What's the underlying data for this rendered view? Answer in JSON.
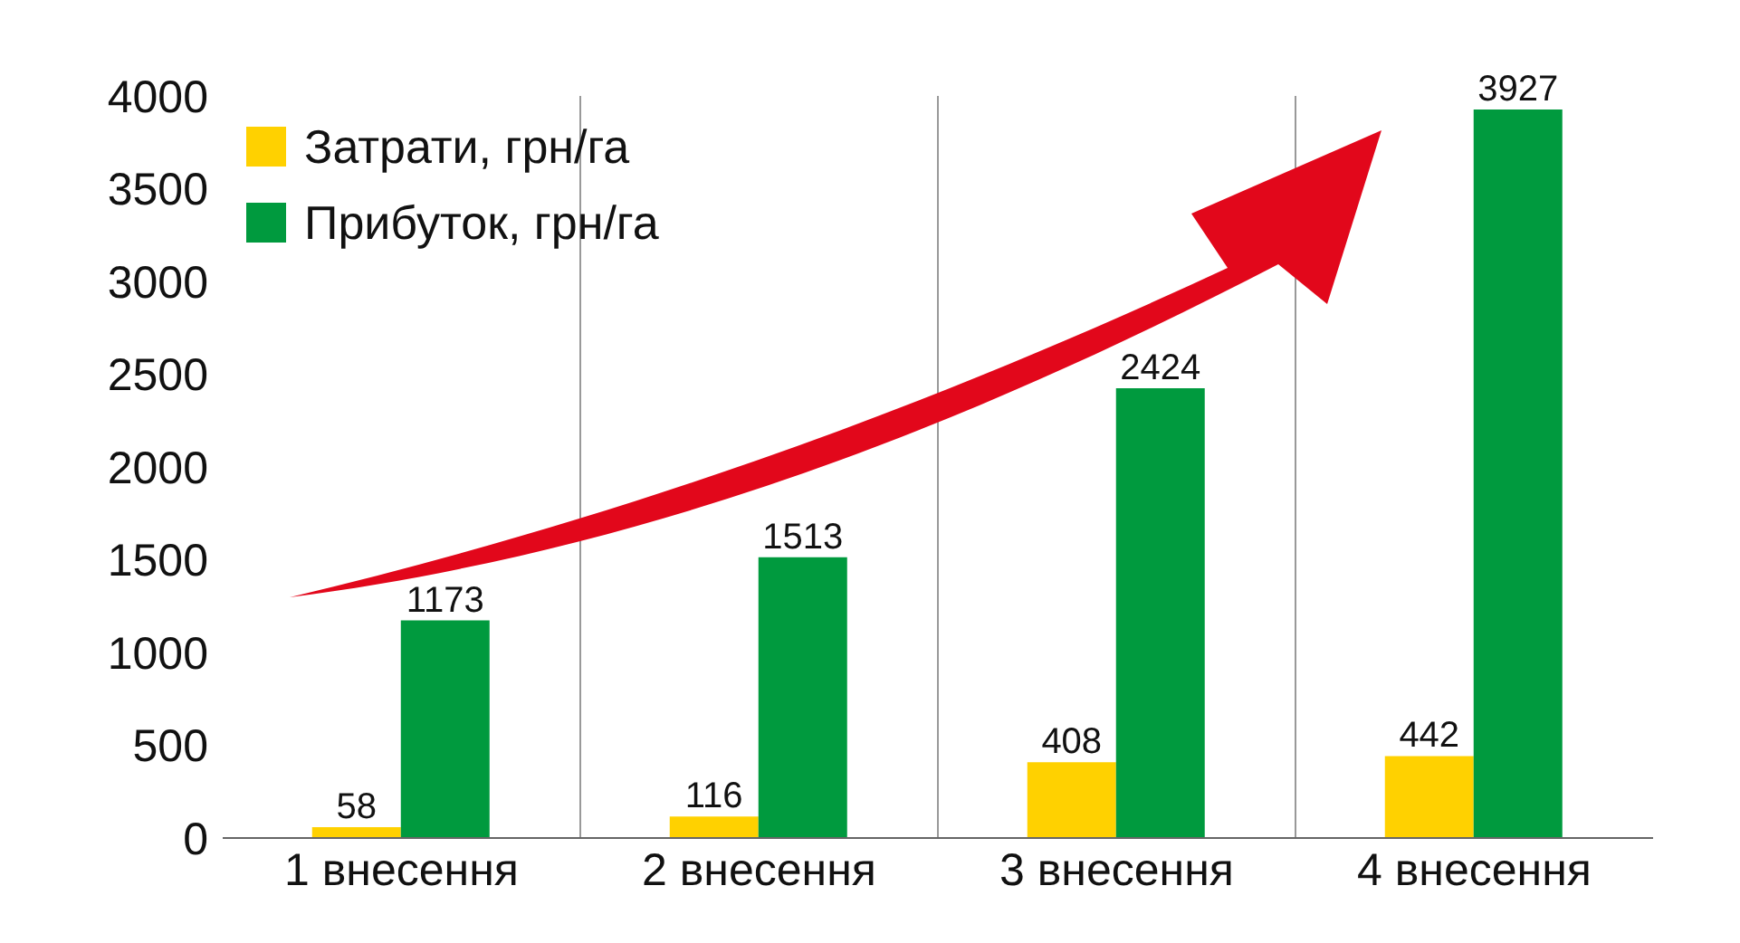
{
  "chart_data": {
    "type": "bar",
    "categories": [
      "1 внесення",
      "2 внесення",
      "3 внесення",
      "4 внесення"
    ],
    "series": [
      {
        "name": "Затрати, грн/га",
        "color": "#ffd100",
        "values": [
          58,
          116,
          408,
          442
        ]
      },
      {
        "name": "Прибуток, грн/га",
        "color": "#009a3e",
        "values": [
          1173,
          1513,
          2424,
          3927
        ]
      }
    ],
    "ylim": [
      0,
      4000
    ],
    "yticks": [
      0,
      500,
      1000,
      1500,
      2000,
      2500,
      3000,
      3500,
      4000
    ],
    "grid": "x",
    "legend": "top left",
    "data_labels": true
  }
}
